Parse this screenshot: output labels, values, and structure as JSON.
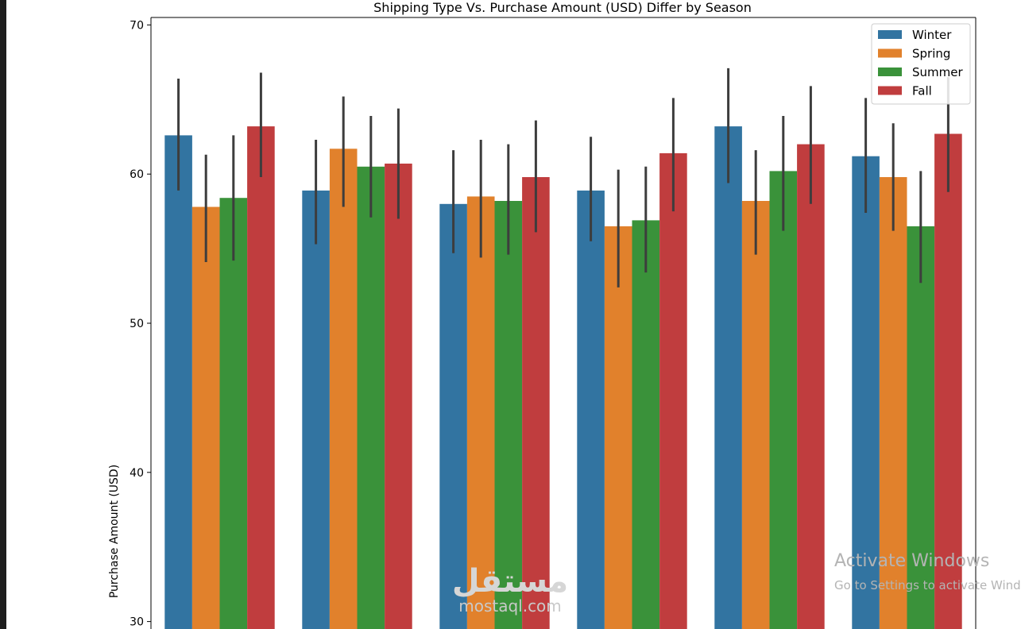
{
  "chart_data": {
    "type": "bar",
    "title": "Shipping Type Vs. Purchase Amount (USD) Differ by Season",
    "xlabel": "",
    "ylabel": "Purchase Amount (USD)",
    "ylim": [
      29.5,
      70.5
    ],
    "yticks": [
      "30",
      "40",
      "50",
      "60",
      "70"
    ],
    "grid": false,
    "legend_position": "top-right",
    "categories": [
      "",
      "",
      "",
      "",
      "",
      ""
    ],
    "series": [
      {
        "name": "Winter",
        "color": "#3274a1",
        "values": [
          62.6,
          58.9,
          58.0,
          58.9,
          63.2,
          61.2
        ],
        "ci": [
          [
            58.9,
            66.4
          ],
          [
            55.3,
            62.3
          ],
          [
            54.7,
            61.6
          ],
          [
            55.5,
            62.5
          ],
          [
            59.4,
            67.1
          ],
          [
            57.4,
            65.1
          ]
        ]
      },
      {
        "name": "Spring",
        "color": "#e1812c",
        "values": [
          57.8,
          61.7,
          58.5,
          56.5,
          58.2,
          59.8
        ],
        "ci": [
          [
            54.1,
            61.3
          ],
          [
            57.8,
            65.2
          ],
          [
            54.4,
            62.3
          ],
          [
            52.4,
            60.3
          ],
          [
            54.6,
            61.6
          ],
          [
            56.2,
            63.4
          ]
        ]
      },
      {
        "name": "Summer",
        "color": "#3a923a",
        "values": [
          58.4,
          60.5,
          58.2,
          56.9,
          60.2,
          56.5
        ],
        "ci": [
          [
            54.2,
            62.6
          ],
          [
            57.1,
            63.9
          ],
          [
            54.6,
            62.0
          ],
          [
            53.4,
            60.5
          ],
          [
            56.2,
            63.9
          ],
          [
            52.7,
            60.2
          ]
        ]
      },
      {
        "name": "Fall",
        "color": "#c03d3e",
        "values": [
          63.2,
          60.7,
          59.8,
          61.4,
          62.0,
          62.7
        ],
        "ci": [
          [
            59.8,
            66.8
          ],
          [
            57.0,
            64.4
          ],
          [
            56.1,
            63.6
          ],
          [
            57.5,
            65.1
          ],
          [
            58.0,
            65.9
          ],
          [
            58.8,
            66.5
          ]
        ]
      }
    ]
  },
  "watermark": {
    "arabic": "مستقل",
    "brand": "mostaql.com"
  },
  "windows_notice": {
    "title": "Activate Windows",
    "subtitle": "Go to Settings to activate Windows."
  }
}
